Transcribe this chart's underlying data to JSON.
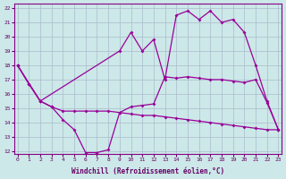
{
  "xlabel": "Windchill (Refroidissement éolien,°C)",
  "xlim": [
    -0.3,
    23.3
  ],
  "ylim": [
    11.8,
    22.3
  ],
  "yticks": [
    12,
    13,
    14,
    15,
    16,
    17,
    18,
    19,
    20,
    21,
    22
  ],
  "xticks": [
    0,
    1,
    2,
    3,
    4,
    5,
    6,
    7,
    8,
    9,
    10,
    11,
    12,
    13,
    14,
    15,
    16,
    17,
    18,
    19,
    20,
    21,
    22,
    23
  ],
  "bg_color": "#cce8e8",
  "grid_color": "#aabbcc",
  "line_color": "#990099",
  "line1_x": [
    0,
    1,
    2,
    3,
    4,
    5,
    6,
    7,
    8,
    9,
    10,
    11,
    12,
    13,
    14,
    15,
    16,
    17,
    18,
    19,
    20,
    21,
    22,
    23
  ],
  "line1_y": [
    18.0,
    16.7,
    15.5,
    15.1,
    14.8,
    14.8,
    14.8,
    14.8,
    14.8,
    14.7,
    14.6,
    14.5,
    14.5,
    14.4,
    14.3,
    14.2,
    14.1,
    14.0,
    13.9,
    13.8,
    13.7,
    13.6,
    13.5,
    13.5
  ],
  "line2_x": [
    0,
    2,
    9,
    10,
    11,
    12,
    13,
    14,
    15,
    16,
    17,
    18,
    19,
    20,
    21,
    22,
    23
  ],
  "line2_y": [
    18.0,
    15.5,
    19.0,
    20.3,
    19.0,
    19.8,
    17.0,
    21.5,
    21.8,
    21.2,
    21.8,
    21.0,
    21.2,
    20.3,
    18.0,
    15.5,
    13.5
  ],
  "line3_x": [
    0,
    1,
    2,
    3,
    4,
    5,
    6,
    7,
    8,
    9,
    10,
    11,
    12,
    13,
    14,
    15,
    16,
    17,
    18,
    19,
    20,
    21,
    22,
    23
  ],
  "line3_y": [
    18.0,
    16.7,
    15.5,
    15.1,
    14.2,
    13.5,
    11.9,
    11.9,
    12.1,
    14.7,
    15.1,
    15.2,
    15.3,
    17.2,
    17.1,
    17.2,
    17.1,
    17.0,
    17.0,
    16.9,
    16.8,
    17.0,
    15.4,
    13.5
  ]
}
